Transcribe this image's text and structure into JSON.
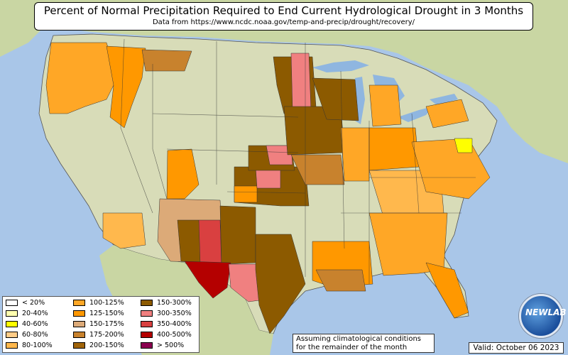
{
  "title": "Percent of Normal Precipitation Required to End Current Hydrological Drought in 3 Months",
  "subtitle": "Data from https://www.ncdc.noaa.gov/temp-and-precip/drought/recovery/",
  "legend": [
    {
      "label": "< 20%",
      "color": "#ffffff"
    },
    {
      "label": "20-40%",
      "color": "#ffffb0"
    },
    {
      "label": "40-60%",
      "color": "#ffff00"
    },
    {
      "label": "60-80%",
      "color": "#ffcc88"
    },
    {
      "label": "80-100%",
      "color": "#ffb84d"
    },
    {
      "label": "100-125%",
      "color": "#ffa726"
    },
    {
      "label": "125-150%",
      "color": "#ff9800"
    },
    {
      "label": "150-175%",
      "color": "#dcaa78"
    },
    {
      "label": "175-200%",
      "color": "#c8822d"
    },
    {
      "label": "200-150%",
      "color": "#a0640a"
    },
    {
      "label": "150-300%",
      "color": "#8c5a00"
    },
    {
      "label": "300-350%",
      "color": "#f08080"
    },
    {
      "label": "350-400%",
      "color": "#d94040"
    },
    {
      "label": "400-500%",
      "color": "#b40000"
    },
    {
      "label": "> 500%",
      "color": "#8b0050"
    }
  ],
  "note_line1": "Assuming climatological conditions",
  "note_line2": "for the remainder of the month",
  "valid": "Valid: October 06 2023",
  "logo_text": "NEWLAB",
  "colors": {
    "ocean": "#a9c6e8",
    "land_us": "#d8dcb8",
    "land_other": "#c9d6a3",
    "lakes": "#8fb6e0"
  }
}
